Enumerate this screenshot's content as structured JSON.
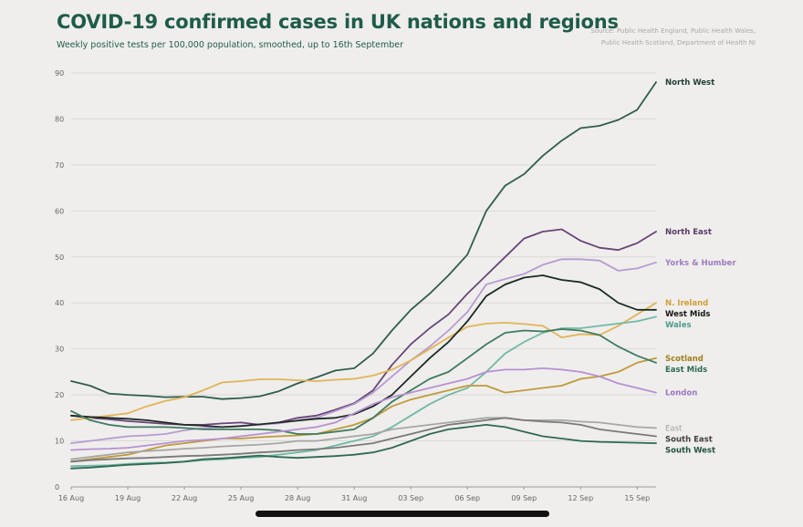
{
  "header": {
    "title": "COVID-19 confirmed cases in UK nations and regions",
    "subtitle": "Weekly positive tests per 100,000 population, smoothed, up to 16th September",
    "source_lines": [
      "Source: Public Health England, Public Health Wales,",
      "Public Health Scotland, Department of Health NI"
    ]
  },
  "chart_data": {
    "type": "line",
    "title": "COVID-19 confirmed cases in UK nations and regions",
    "xlabel": "",
    "ylabel": "",
    "xlim": [
      0,
      31
    ],
    "ylim": [
      0,
      90
    ],
    "grid": true,
    "yticks": [
      0,
      10,
      20,
      30,
      40,
      50,
      60,
      70,
      80,
      90
    ],
    "xticks": [
      {
        "x": 0,
        "label": "16 Aug"
      },
      {
        "x": 3,
        "label": "19 Aug"
      },
      {
        "x": 6,
        "label": "22 Aug"
      },
      {
        "x": 9,
        "label": "25 Aug"
      },
      {
        "x": 12,
        "label": "28 Aug"
      },
      {
        "x": 15,
        "label": "31 Aug"
      },
      {
        "x": 18,
        "label": "03 Sep"
      },
      {
        "x": 21,
        "label": "06 Sep"
      },
      {
        "x": 24,
        "label": "09 Sep"
      },
      {
        "x": 27,
        "label": "12 Sep"
      },
      {
        "x": 30,
        "label": "15 Sep"
      }
    ],
    "series": [
      {
        "name": "North West",
        "color": "#2f5d4e",
        "label_color": "#1f3f35",
        "values": [
          23,
          22,
          20.3,
          20,
          19.8,
          19.5,
          19.6,
          19.6,
          19.1,
          19.3,
          19.7,
          20.8,
          22.5,
          23.8,
          25.3,
          25.8,
          29,
          34,
          38.5,
          42,
          46,
          50.5,
          60,
          65.5,
          68,
          72,
          75.3,
          78,
          78.5,
          79.8,
          82,
          88
        ]
      },
      {
        "name": "North East",
        "color": "#6a4578",
        "label_color": "#5a3a68",
        "values": [
          15.5,
          15,
          14.7,
          14.3,
          14,
          13.7,
          13.5,
          13.5,
          13.8,
          14,
          13.5,
          14,
          15,
          15.5,
          16.8,
          18.2,
          21,
          26.5,
          31,
          34.5,
          37.5,
          42,
          46,
          50,
          54,
          55.5,
          56,
          53.5,
          52,
          51.5,
          53,
          55.5
        ]
      },
      {
        "name": "Yorks & Humber",
        "color": "#b79bd2",
        "label_color": "#9d7cbf",
        "values": [
          9.5,
          10,
          10.5,
          11,
          11.2,
          11.5,
          12.3,
          12.8,
          13,
          13.3,
          13.5,
          13.8,
          14.5,
          15,
          16.5,
          18,
          20.5,
          24,
          27.5,
          30.5,
          34,
          38,
          44,
          45.2,
          46.3,
          48.3,
          49.5,
          49.5,
          49.2,
          47,
          47.5,
          48.8
        ]
      },
      {
        "name": "N. Ireland",
        "color": "#e2b458",
        "label_color": "#d39e34",
        "values": [
          14.5,
          15,
          15.5,
          16,
          17.5,
          18.7,
          19.5,
          21,
          22.7,
          23,
          23.4,
          23.4,
          23.2,
          23,
          23.3,
          23.5,
          24.2,
          25.5,
          27.5,
          30,
          32.5,
          34.8,
          35.5,
          35.7,
          35.4,
          35,
          32.5,
          33.2,
          33,
          35,
          37.5,
          40
        ]
      },
      {
        "name": "West Mids",
        "color": "#1c2b26",
        "label_color": "#161616",
        "values": [
          15.5,
          15.2,
          15,
          14.8,
          14.5,
          14,
          13.5,
          13.3,
          13,
          13.2,
          13.6,
          14,
          14.4,
          14.8,
          15,
          15.8,
          17.5,
          20,
          24,
          28,
          31.5,
          36,
          41.5,
          44,
          45.5,
          46,
          45,
          44.5,
          43,
          40,
          38.5,
          38.5
        ]
      },
      {
        "name": "Wales",
        "color": "#71b8a7",
        "label_color": "#4f9b8a",
        "values": [
          4.5,
          4.6,
          4.7,
          5,
          5.2,
          5.3,
          5.5,
          5.8,
          6,
          6.3,
          6.5,
          7,
          7.5,
          8,
          9,
          10,
          11,
          13,
          15.5,
          18,
          20,
          21.5,
          25,
          29,
          31.5,
          33.5,
          34.5,
          34.5,
          35,
          35.5,
          36,
          37
        ]
      },
      {
        "name": "Scotland",
        "color": "#c09a3c",
        "label_color": "#a17e1e",
        "values": [
          5.5,
          6,
          6.5,
          7,
          8,
          9,
          9.5,
          10,
          10.5,
          10.5,
          10.8,
          11,
          11.2,
          11.5,
          12.5,
          13.5,
          15,
          17.5,
          19,
          20,
          21,
          22,
          22,
          20.5,
          21,
          21.5,
          22,
          23.5,
          24,
          25,
          27,
          28
        ]
      },
      {
        "name": "East Mids",
        "color": "#3e7b60",
        "label_color": "#2f6b52",
        "values": [
          16.5,
          14.5,
          13.5,
          13,
          13,
          13,
          12.8,
          12.5,
          12.5,
          12.5,
          12.5,
          12.3,
          11.5,
          11.5,
          12,
          12.5,
          15,
          18.5,
          21,
          23.5,
          25,
          28,
          31,
          33.5,
          34,
          33.8,
          34.3,
          34,
          33,
          30.5,
          28.5,
          27
        ]
      },
      {
        "name": "London",
        "color": "#b791d2",
        "label_color": "#9d75c0",
        "values": [
          8,
          8.2,
          8.3,
          8.5,
          9,
          9.5,
          10,
          10.2,
          10.5,
          11,
          11.5,
          12,
          12.5,
          13,
          14,
          16,
          18,
          19.5,
          20.5,
          21.5,
          22.5,
          23.5,
          25,
          25.5,
          25.5,
          25.8,
          25.5,
          25,
          24,
          22.5,
          21.5,
          20.5
        ]
      },
      {
        "name": "East",
        "color": "#a6a6a6",
        "label_color": "#a0a0a0",
        "values": [
          6,
          6.5,
          7,
          7.5,
          7.8,
          8,
          8.3,
          8.5,
          8.8,
          9,
          9.2,
          9.5,
          10,
          10,
          10.5,
          11,
          11.5,
          12.5,
          13,
          13.5,
          14,
          14.5,
          15,
          15,
          14.5,
          14.5,
          14.5,
          14.2,
          14,
          13.5,
          13,
          12.8
        ]
      },
      {
        "name": "South East",
        "color": "#7a7a7a",
        "label_color": "#404040",
        "values": [
          5.5,
          5.8,
          6,
          6.2,
          6.3,
          6.5,
          6.7,
          6.8,
          7,
          7.2,
          7.5,
          7.7,
          8,
          8.2,
          8.5,
          9,
          9.5,
          10.5,
          11.5,
          12.5,
          13.5,
          14,
          14.5,
          15,
          14.5,
          14.2,
          14,
          13.5,
          12.5,
          12,
          11.5,
          11
        ]
      },
      {
        "name": "South West",
        "color": "#2f6a53",
        "label_color": "#23513f",
        "values": [
          4,
          4.2,
          4.5,
          4.8,
          5,
          5.2,
          5.5,
          6,
          6.2,
          6.5,
          6.8,
          6.5,
          6.3,
          6.5,
          6.7,
          7,
          7.5,
          8.5,
          10,
          11.5,
          12.5,
          13,
          13.5,
          13,
          12,
          11,
          10.5,
          10,
          9.8,
          9.7,
          9.6,
          9.5
        ]
      }
    ],
    "label_offsets": {}
  }
}
